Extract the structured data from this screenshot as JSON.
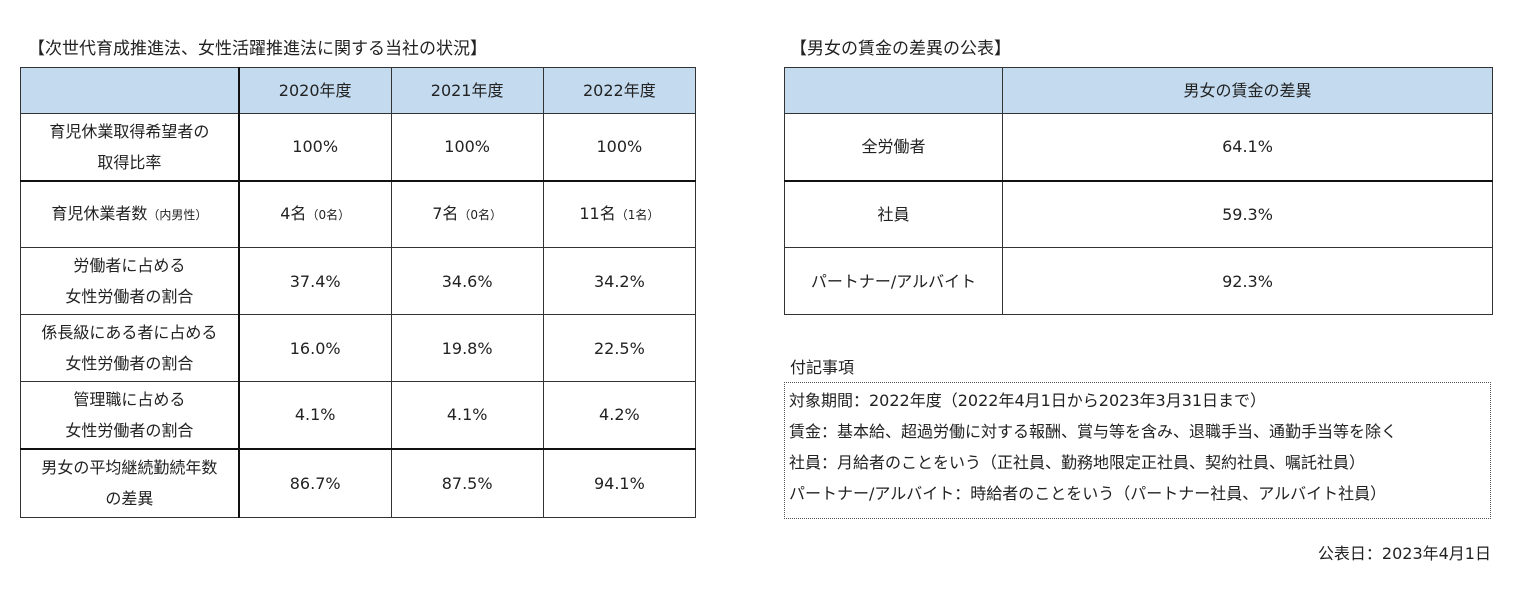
{
  "left_section": {
    "title": "【次世代育成推進法、女性活躍推進法に関する当社の状況】",
    "headers": [
      "",
      "2020年度",
      "2021年度",
      "2022年度"
    ],
    "rows": [
      {
        "label_lines": [
          "育児休業取得希望者の",
          "取得比率"
        ],
        "cells": [
          "100%",
          "100%",
          "100%"
        ]
      },
      {
        "label": "育児休業者数",
        "label_note": "（内男性）",
        "cells": [
          {
            "main": "4名",
            "note": "（0名）"
          },
          {
            "main": "7名",
            "note": "（0名）"
          },
          {
            "main": "11名",
            "note": "（1名）"
          }
        ]
      },
      {
        "label_lines": [
          "労働者に占める",
          "女性労働者の割合"
        ],
        "cells": [
          "37.4%",
          "34.6%",
          "34.2%"
        ]
      },
      {
        "label_lines": [
          "係長級にある者に占める",
          "女性労働者の割合"
        ],
        "cells": [
          "16.0%",
          "19.8%",
          "22.5%"
        ]
      },
      {
        "label_lines": [
          "管理職に占める",
          "女性労働者の割合"
        ],
        "cells": [
          "4.1%",
          "4.1%",
          "4.2%"
        ]
      },
      {
        "label_lines": [
          "男女の平均継続勤続年数",
          "の差異"
        ],
        "cells": [
          "86.7%",
          "87.5%",
          "94.1%"
        ]
      }
    ]
  },
  "right_section": {
    "title": "【男女の賃金の差異の公表】",
    "headers": [
      "",
      "男女の賃金の差異"
    ],
    "rows": [
      {
        "label": "全労働者",
        "value": "64.1%"
      },
      {
        "label": "社員",
        "value": "59.3%"
      },
      {
        "label": "パートナー/アルバイト",
        "value": "92.3%"
      }
    ]
  },
  "notes": {
    "title": "付記事項",
    "lines": [
      "対象期間：2022年度（2022年4月1日から2023年3月31日まで）",
      "賃金：基本給、超過労働に対する報酬、賞与等を含み、退職手当、通勤手当等を除く",
      "社員：月給者のことをいう（正社員、勤務地限定正社員、契約社員、嘱託社員）",
      "パートナー/アルバイト：時給者のことをいう（パートナー社員、アルバイト社員）"
    ]
  },
  "publication_date": "公表日：2023年4月1日"
}
